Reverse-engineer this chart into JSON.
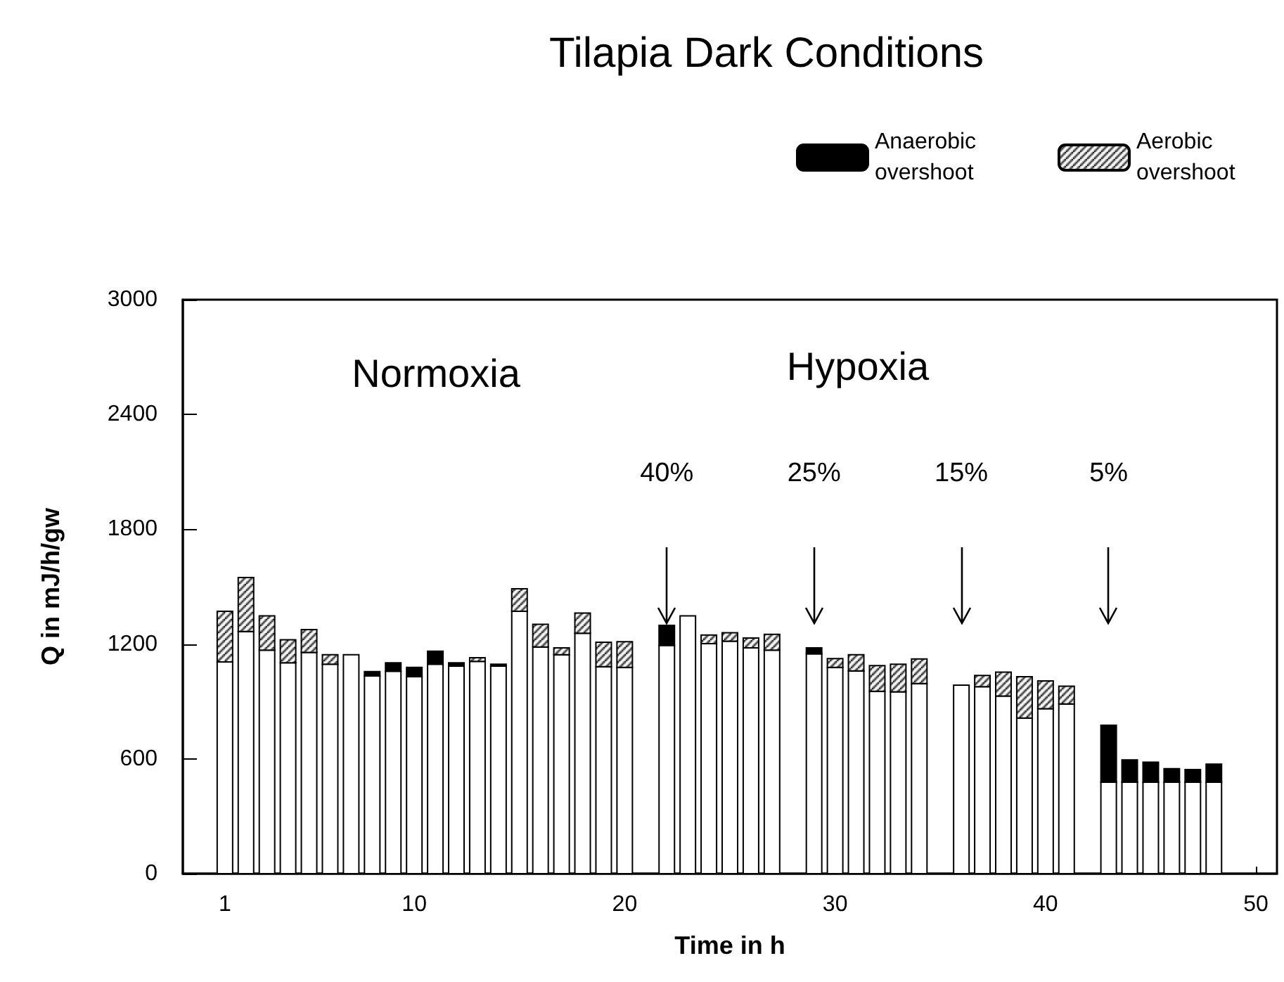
{
  "chart_data": {
    "type": "bar",
    "title": "Tilapia Dark Conditions",
    "xlabel": "Time in h",
    "ylabel": "Q in mJ/h/gw",
    "stacked": true,
    "x": [
      1,
      2,
      3,
      4,
      5,
      6,
      7,
      8,
      9,
      10,
      11,
      12,
      13,
      14,
      15,
      16,
      17,
      18,
      19,
      20,
      22,
      23,
      24,
      25,
      26,
      27,
      29,
      30,
      31,
      32,
      33,
      34,
      36,
      37,
      38,
      39,
      40,
      41,
      43,
      44,
      45,
      46,
      47,
      48
    ],
    "series": [
      {
        "color": "#ffffff",
        "values": [
          1107,
          1266,
          1168,
          1102,
          1156,
          1095,
          1144,
          1034,
          1058,
          1029,
          1095,
          1085,
          1109,
          1085,
          1371,
          1185,
          1144,
          1256,
          1082,
          1078,
          1193,
          1347,
          1202,
          1215,
          1180,
          1168,
          1149,
          1078,
          1060,
          953,
          950,
          994,
          985,
          977,
          928,
          813,
          862,
          887,
          478,
          478,
          478,
          478,
          478,
          478
        ]
      },
      {
        "name": "Anaerobic overshoot",
        "color": "#000000",
        "values": [
          null,
          null,
          null,
          null,
          null,
          null,
          null,
          22,
          44,
          49,
          68,
          17,
          null,
          10,
          null,
          null,
          null,
          null,
          null,
          null,
          105,
          null,
          null,
          null,
          null,
          null,
          31,
          null,
          null,
          null,
          null,
          null,
          null,
          null,
          null,
          null,
          null,
          null,
          298,
          117,
          105,
          71,
          66,
          95
        ]
      },
      {
        "name": "Aerobic overshoot",
        "color": "#000000",
        "values": [
          264,
          282,
          179,
          120,
          120,
          49,
          null,
          null,
          null,
          null,
          null,
          null,
          20,
          null,
          118,
          118,
          36,
          106,
          128,
          134,
          null,
          null,
          45,
          44,
          52,
          83,
          null,
          46,
          84,
          134,
          145,
          128,
          null,
          59,
          125,
          216,
          145,
          93,
          null,
          null,
          null,
          null,
          null,
          null
        ]
      }
    ],
    "xlim": [
      -1,
      51
    ],
    "xticks": [
      1,
      10,
      20,
      30,
      40,
      50
    ],
    "ylim": [
      0,
      3000
    ],
    "yticks": [
      0,
      600,
      1200,
      1800,
      2400,
      3000
    ],
    "legend": "top right",
    "annotations": [
      "Normoxia",
      "Hypoxia",
      "40%",
      "25%",
      "15%",
      "5%"
    ]
  }
}
